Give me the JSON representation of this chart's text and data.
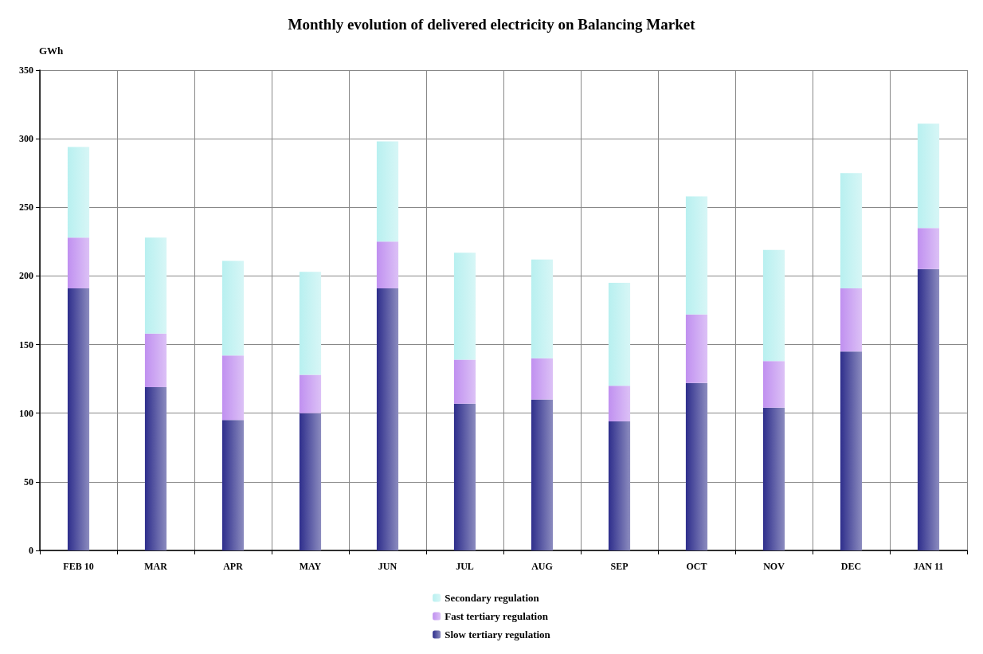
{
  "chart_data": {
    "type": "bar",
    "title": "Monthly evolution of delivered electricity on Balancing Market",
    "ylabel": "GWh",
    "categories": [
      "FEB 10",
      "MAR",
      "APR",
      "MAY",
      "JUN",
      "JUL",
      "AUG",
      "SEP",
      "OCT",
      "NOV",
      "DEC",
      "JAN 11"
    ],
    "series": [
      {
        "name": "Slow tertiary regulation",
        "color": "#2e2e8c",
        "values": [
          191,
          119,
          95,
          100,
          191,
          107,
          110,
          94,
          122,
          104,
          145,
          205
        ]
      },
      {
        "name": "Fast tertiary regulation",
        "color": "#c090f0",
        "values": [
          37,
          39,
          47,
          28,
          34,
          32,
          30,
          26,
          50,
          34,
          46,
          30
        ]
      },
      {
        "name": "Secondary regulation",
        "color": "#b8f0f0",
        "values": [
          66,
          70,
          69,
          75,
          73,
          78,
          72,
          75,
          86,
          81,
          84,
          76
        ]
      }
    ],
    "stacked": true,
    "ylim": [
      0,
      350
    ],
    "yticks": [
      0,
      50,
      100,
      150,
      200,
      250,
      300,
      350
    ],
    "grid": true,
    "legend": "bottom"
  }
}
